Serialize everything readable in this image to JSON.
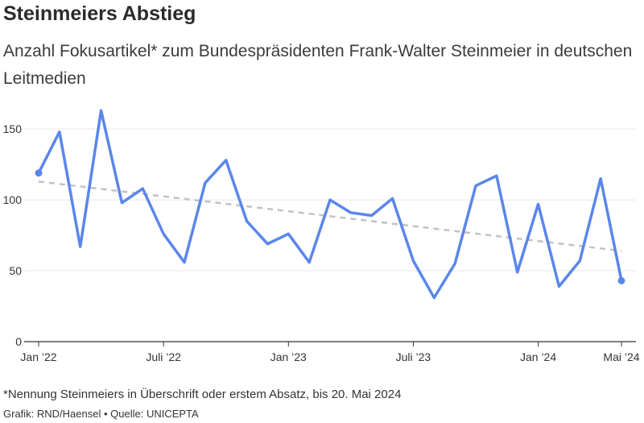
{
  "header": {
    "title": "Steinmeiers Abstieg",
    "subtitle": "Anzahl Fokusartikel* zum Bundespräsidenten Frank-Walter Steinmeier in deutschen Leitmedien"
  },
  "footer": {
    "note": "*Nennung Steinmeiers in Überschrift oder erstem Absatz, bis 20. Mai 2024",
    "credit": "Grafik: RND/Haensel • Quelle: UNICEPTA"
  },
  "colors": {
    "line": "#5b86eb",
    "trend": "#c2c2c2",
    "grid": "#e6e6e6",
    "axis": "#333333"
  },
  "chart_data": {
    "type": "line",
    "title": "Steinmeiers Abstieg",
    "subtitle": "Anzahl Fokusartikel* zum Bundespräsidenten Frank-Walter Steinmeier in deutschen Leitmedien",
    "xlabel": "",
    "ylabel": "",
    "ylim": [
      0,
      150
    ],
    "yticks": [
      0,
      50,
      100,
      150
    ],
    "grid": true,
    "x": [
      "2022-01",
      "2022-02",
      "2022-03",
      "2022-04",
      "2022-05",
      "2022-06",
      "2022-07",
      "2022-08",
      "2022-09",
      "2022-10",
      "2022-11",
      "2022-12",
      "2023-01",
      "2023-02",
      "2023-03",
      "2023-04",
      "2023-05",
      "2023-06",
      "2023-07",
      "2023-08",
      "2023-09",
      "2023-10",
      "2023-11",
      "2023-12",
      "2024-01",
      "2024-02",
      "2024-03",
      "2024-04",
      "2024-05"
    ],
    "xticks": [
      {
        "label": "Jan ’22",
        "x": "2022-01"
      },
      {
        "label": "Juli ’22",
        "x": "2022-07"
      },
      {
        "label": "Jan ’23",
        "x": "2023-01"
      },
      {
        "label": "Juli ’23",
        "x": "2023-07"
      },
      {
        "label": "Jan ’24",
        "x": "2024-01"
      },
      {
        "label": "Mai ’24",
        "x": "2024-05"
      }
    ],
    "series": [
      {
        "values": [
          119,
          148,
          67,
          163,
          98,
          108,
          76,
          56,
          112,
          128,
          85,
          69,
          76,
          56,
          100,
          91,
          89,
          101,
          57,
          31,
          55,
          110,
          117,
          49,
          97,
          39,
          57,
          115,
          43
        ]
      }
    ],
    "trend": {
      "start": 113,
      "end": 64
    }
  }
}
